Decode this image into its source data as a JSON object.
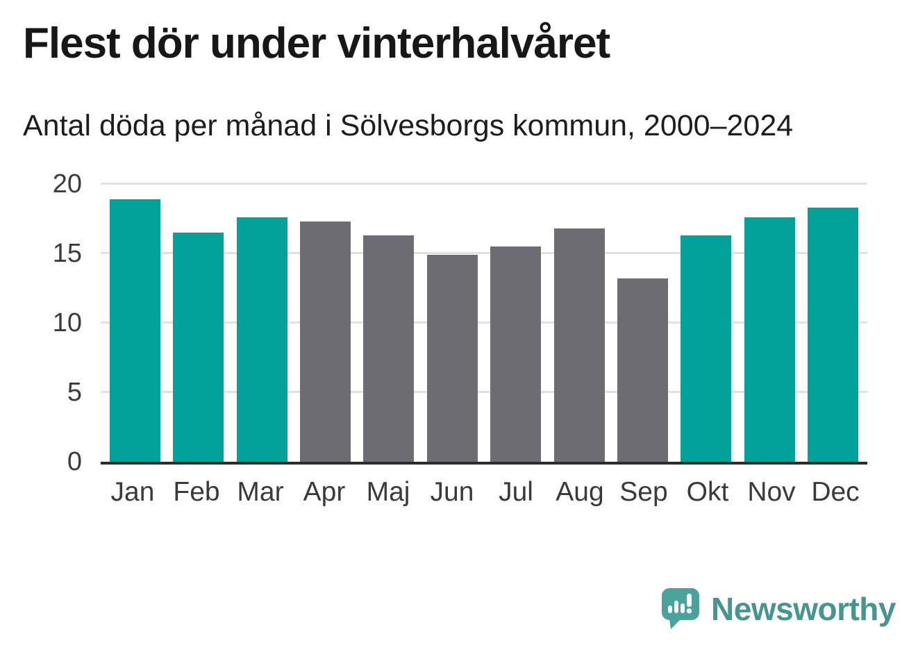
{
  "header": {
    "title": "Flest dör under vinterhalvåret",
    "subtitle": "Antal döda per månad i Sölvesborgs kommun, 2000–2024"
  },
  "chart_data": {
    "type": "bar",
    "title": "Flest dör under vinterhalvåret",
    "subtitle": "Antal döda per månad i Sölvesborgs kommun, 2000–2024",
    "categories": [
      "Jan",
      "Feb",
      "Mar",
      "Apr",
      "Maj",
      "Jun",
      "Jul",
      "Aug",
      "Sep",
      "Okt",
      "Nov",
      "Dec"
    ],
    "values": [
      18.9,
      16.5,
      17.6,
      17.3,
      16.3,
      14.9,
      15.5,
      16.8,
      13.2,
      16.3,
      17.6,
      18.3
    ],
    "bar_colors": [
      "#00a29a",
      "#00a29a",
      "#00a29a",
      "#6d6c72",
      "#6d6c72",
      "#6d6c72",
      "#6d6c72",
      "#6d6c72",
      "#6d6c72",
      "#00a29a",
      "#00a29a",
      "#00a29a"
    ],
    "xlabel": "",
    "ylabel": "",
    "ylim": [
      0,
      20
    ],
    "yticks": [
      0,
      5,
      10,
      15,
      20
    ],
    "grid": true,
    "legend": "none"
  },
  "colors": {
    "accent_teal": "#00a29a",
    "bar_gray": "#6d6c72",
    "gridline": "#e1e1e1",
    "axis_line": "#2c2c2c",
    "tick_label": "#3b3b3b",
    "title_text": "#171717",
    "logo_teal": "#47958e"
  },
  "footer": {
    "brand": "Newsworthy"
  }
}
